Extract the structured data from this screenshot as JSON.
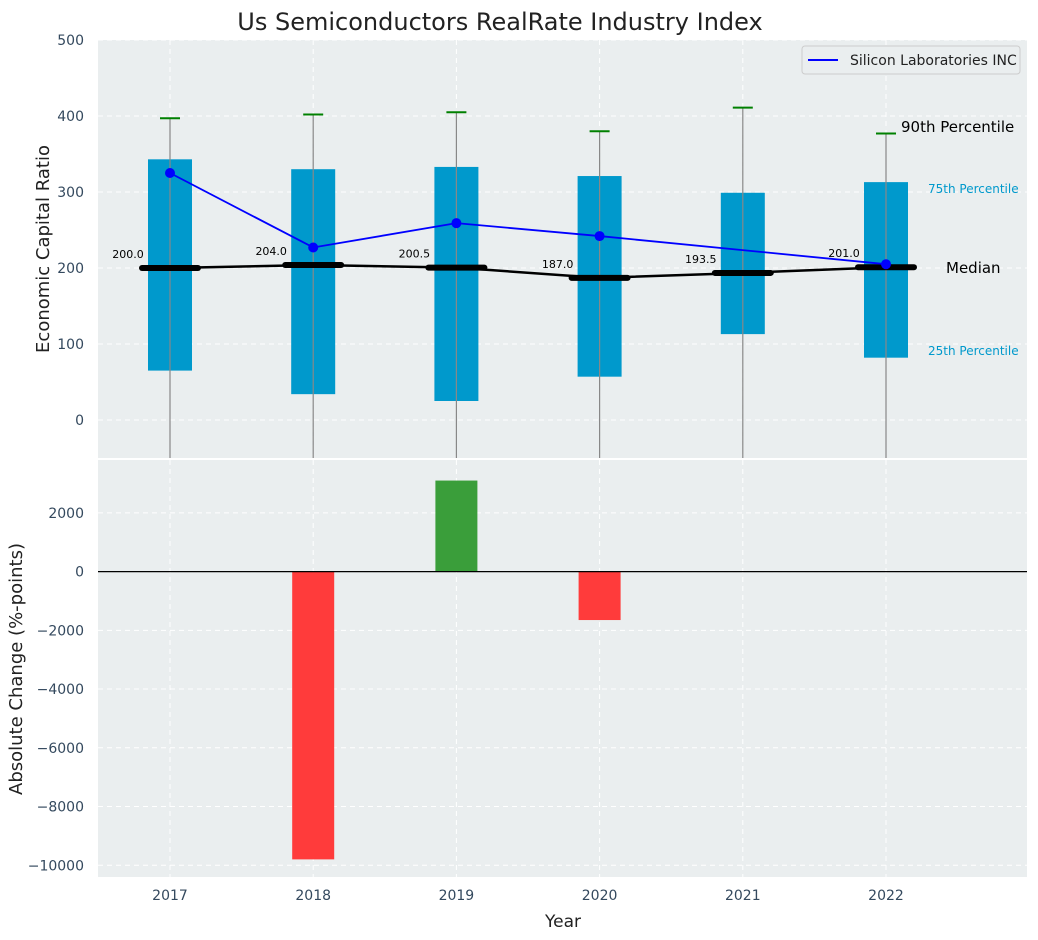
{
  "chart_data": [
    {
      "type": "box",
      "title": "Us Semiconductors RealRate Industry Index",
      "ylabel": "Economic Capital Ratio",
      "ylim": [
        -50,
        500
      ],
      "yticks": [
        0,
        100,
        200,
        300,
        400,
        500
      ],
      "grid": true,
      "legend_position": "top-right",
      "categories": [
        "2017",
        "2018",
        "2019",
        "2020",
        "2021",
        "2022"
      ],
      "p25": [
        65,
        34,
        25,
        57,
        113,
        82
      ],
      "p75": [
        343,
        330,
        333,
        321,
        299,
        313
      ],
      "p90": [
        397,
        402,
        405,
        380,
        411,
        377
      ],
      "median": [
        200.0,
        204.0,
        200.5,
        187.0,
        193.5,
        201.0
      ],
      "median_labels": [
        "200.0",
        "204.0",
        "200.5",
        "187.0",
        "193.5",
        "201.0"
      ],
      "series": [
        {
          "name": "Silicon Laboratories INC",
          "values": [
            325,
            227,
            259,
            242,
            null,
            205
          ]
        }
      ],
      "annotations": {
        "p90": "90th Percentile",
        "p75": "75th Percentile",
        "median": "Median",
        "p25": "25th Percentile"
      },
      "colors": {
        "box": "#0099CC",
        "whisker_cap": "#008000",
        "series": "#0000FF",
        "median": "#000000"
      }
    },
    {
      "type": "bar",
      "xlabel": "Year",
      "ylabel": "Absolute Change (%-points)",
      "ylim": [
        -10400,
        3800
      ],
      "yticks": [
        -10000,
        -8000,
        -6000,
        -4000,
        -2000,
        0,
        2000
      ],
      "grid": true,
      "categories": [
        "2017",
        "2018",
        "2019",
        "2020",
        "2021",
        "2022"
      ],
      "values": [
        0,
        -9800,
        3100,
        -1650,
        0,
        0
      ],
      "colors": {
        "positive": "#3A9E3A",
        "negative": "#FF3B3B"
      }
    }
  ]
}
